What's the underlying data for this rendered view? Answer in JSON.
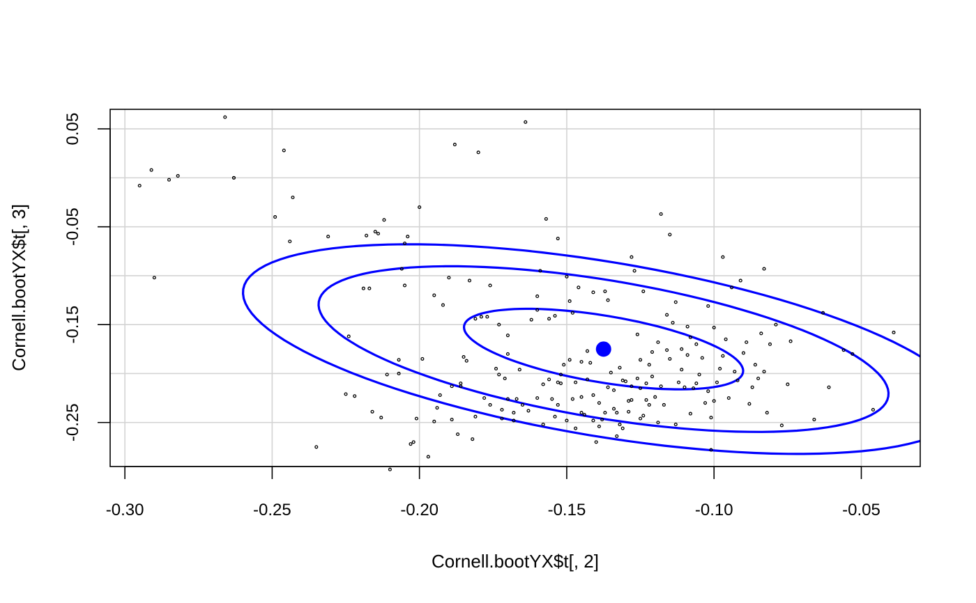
{
  "chart_data": {
    "type": "scatter",
    "xlabel": "Cornell.bootYX$t[, 2]",
    "ylabel": "Cornell.bootYX$t[, 3]",
    "xlim": [
      -0.305,
      -0.03
    ],
    "ylim": [
      -0.295,
      0.07
    ],
    "xticks": [
      -0.3,
      -0.25,
      -0.2,
      -0.15,
      -0.1,
      -0.05
    ],
    "xtick_labels": [
      "-0.30",
      "-0.25",
      "-0.20",
      "-0.15",
      "-0.10",
      "-0.05"
    ],
    "yticks": [
      -0.25,
      -0.15,
      -0.05,
      0.05
    ],
    "ytick_labels": [
      "-0.25",
      "-0.15",
      "-0.05",
      "0.05"
    ],
    "grid": true,
    "grid_color": "#d3d3d3",
    "point_color": "#000000",
    "ellipse_color": "#0000ff",
    "center": {
      "x": -0.1375,
      "y": -0.175
    },
    "ellipses": [
      {
        "label_level": "inner",
        "semi_x": 0.048,
        "semi_y": 0.062
      },
      {
        "label_level": "middle",
        "semi_x": 0.098,
        "semi_y": 0.128
      },
      {
        "label_level": "outer",
        "semi_x": 0.124,
        "semi_y": 0.162
      }
    ],
    "ellipse_tilt": -0.165,
    "points": [
      [
        -0.295,
        -0.008
      ],
      [
        -0.291,
        0.008
      ],
      [
        -0.29,
        -0.102
      ],
      [
        -0.285,
        -0.002
      ],
      [
        -0.282,
        0.002
      ],
      [
        -0.266,
        0.062
      ],
      [
        -0.263,
        0.0
      ],
      [
        -0.263,
        0.0
      ],
      [
        -0.249,
        -0.04
      ],
      [
        -0.246,
        0.028
      ],
      [
        -0.243,
        -0.02
      ],
      [
        -0.244,
        -0.065
      ],
      [
        -0.235,
        -0.275
      ],
      [
        -0.231,
        -0.06
      ],
      [
        -0.224,
        -0.162
      ],
      [
        -0.225,
        -0.221
      ],
      [
        -0.222,
        -0.223
      ],
      [
        -0.219,
        -0.113
      ],
      [
        -0.217,
        -0.113
      ],
      [
        -0.218,
        -0.059
      ],
      [
        -0.216,
        -0.239
      ],
      [
        -0.215,
        -0.055
      ],
      [
        -0.214,
        -0.057
      ],
      [
        -0.213,
        -0.245
      ],
      [
        -0.212,
        -0.043
      ],
      [
        -0.211,
        -0.201
      ],
      [
        -0.21,
        -0.298
      ],
      [
        -0.207,
        -0.186
      ],
      [
        -0.207,
        -0.2
      ],
      [
        -0.206,
        -0.093
      ],
      [
        -0.205,
        -0.067
      ],
      [
        -0.205,
        -0.11
      ],
      [
        -0.204,
        -0.06
      ],
      [
        -0.203,
        -0.272
      ],
      [
        -0.202,
        -0.27
      ],
      [
        -0.2,
        -0.03
      ],
      [
        -0.199,
        -0.185
      ],
      [
        -0.197,
        -0.285
      ],
      [
        -0.195,
        -0.12
      ],
      [
        -0.194,
        -0.235
      ],
      [
        -0.193,
        -0.222
      ],
      [
        -0.192,
        -0.13
      ],
      [
        -0.19,
        -0.102
      ],
      [
        -0.189,
        -0.213
      ],
      [
        -0.188,
        0.034
      ],
      [
        -0.187,
        -0.262
      ],
      [
        -0.186,
        -0.213
      ],
      [
        -0.185,
        -0.183
      ],
      [
        -0.184,
        -0.187
      ],
      [
        -0.183,
        -0.105
      ],
      [
        -0.182,
        -0.267
      ],
      [
        -0.181,
        -0.244
      ],
      [
        -0.18,
        0.026
      ],
      [
        -0.179,
        -0.142
      ],
      [
        -0.178,
        -0.225
      ],
      [
        -0.177,
        -0.142
      ],
      [
        -0.176,
        -0.11
      ],
      [
        -0.174,
        -0.195
      ],
      [
        -0.173,
        -0.201
      ],
      [
        -0.172,
        -0.237
      ],
      [
        -0.172,
        -0.246
      ],
      [
        -0.171,
        -0.205
      ],
      [
        -0.17,
        -0.18
      ],
      [
        -0.17,
        -0.226
      ],
      [
        -0.168,
        -0.24
      ],
      [
        -0.167,
        -0.226
      ],
      [
        -0.166,
        -0.196
      ],
      [
        -0.165,
        -0.232
      ],
      [
        -0.164,
        0.057
      ],
      [
        -0.162,
        -0.145
      ],
      [
        -0.16,
        -0.135
      ],
      [
        -0.159,
        -0.095
      ],
      [
        -0.158,
        -0.211
      ],
      [
        -0.157,
        -0.042
      ],
      [
        -0.156,
        -0.144
      ],
      [
        -0.155,
        -0.226
      ],
      [
        -0.154,
        -0.141
      ],
      [
        -0.153,
        -0.062
      ],
      [
        -0.152,
        -0.201
      ],
      [
        -0.152,
        -0.21
      ],
      [
        -0.151,
        -0.191
      ],
      [
        -0.15,
        -0.101
      ],
      [
        -0.149,
        -0.126
      ],
      [
        -0.148,
        -0.138
      ],
      [
        -0.147,
        -0.256
      ],
      [
        -0.146,
        -0.112
      ],
      [
        -0.145,
        -0.24
      ],
      [
        -0.144,
        -0.242
      ],
      [
        -0.143,
        -0.206
      ],
      [
        -0.142,
        -0.189
      ],
      [
        -0.141,
        -0.248
      ],
      [
        -0.14,
        -0.27
      ],
      [
        -0.139,
        -0.23
      ],
      [
        -0.138,
        -0.247
      ],
      [
        -0.137,
        -0.24
      ],
      [
        -0.136,
        -0.214
      ],
      [
        -0.135,
        -0.199
      ],
      [
        -0.134,
        -0.236
      ],
      [
        -0.133,
        -0.24
      ],
      [
        -0.132,
        -0.252
      ],
      [
        -0.131,
        -0.256
      ],
      [
        -0.13,
        -0.208
      ],
      [
        -0.129,
        -0.239
      ],
      [
        -0.128,
        -0.227
      ],
      [
        -0.127,
        -0.095
      ],
      [
        -0.126,
        -0.16
      ],
      [
        -0.125,
        -0.215
      ],
      [
        -0.124,
        -0.243
      ],
      [
        -0.123,
        -0.227
      ],
      [
        -0.122,
        -0.191
      ],
      [
        -0.121,
        -0.203
      ],
      [
        -0.12,
        -0.224
      ],
      [
        -0.119,
        -0.25
      ],
      [
        -0.118,
        -0.213
      ],
      [
        -0.117,
        -0.232
      ],
      [
        -0.116,
        -0.176
      ],
      [
        -0.115,
        -0.185
      ],
      [
        -0.114,
        -0.148
      ],
      [
        -0.113,
        -0.252
      ],
      [
        -0.112,
        -0.209
      ],
      [
        -0.111,
        -0.196
      ],
      [
        -0.11,
        -0.214
      ],
      [
        -0.109,
        -0.181
      ],
      [
        -0.108,
        -0.241
      ],
      [
        -0.107,
        -0.215
      ],
      [
        -0.106,
        -0.21
      ],
      [
        -0.105,
        -0.201
      ],
      [
        -0.104,
        -0.184
      ],
      [
        -0.103,
        -0.23
      ],
      [
        -0.102,
        -0.218
      ],
      [
        -0.101,
        -0.245
      ],
      [
        -0.1,
        -0.228
      ],
      [
        -0.099,
        -0.209
      ],
      [
        -0.098,
        -0.195
      ],
      [
        -0.097,
        -0.182
      ],
      [
        -0.096,
        -0.165
      ],
      [
        -0.095,
        -0.225
      ],
      [
        -0.094,
        -0.112
      ],
      [
        -0.093,
        -0.198
      ],
      [
        -0.092,
        -0.207
      ],
      [
        -0.091,
        -0.105
      ],
      [
        -0.09,
        -0.179
      ],
      [
        -0.089,
        -0.168
      ],
      [
        -0.088,
        -0.231
      ],
      [
        -0.087,
        -0.214
      ],
      [
        -0.086,
        -0.191
      ],
      [
        -0.085,
        -0.205
      ],
      [
        -0.084,
        -0.159
      ],
      [
        -0.083,
        -0.198
      ],
      [
        -0.082,
        -0.24
      ],
      [
        -0.081,
        -0.17
      ],
      [
        -0.079,
        -0.15
      ],
      [
        -0.077,
        -0.253
      ],
      [
        -0.075,
        -0.211
      ],
      [
        -0.074,
        -0.167
      ],
      [
        -0.066,
        -0.247
      ],
      [
        -0.063,
        -0.138
      ],
      [
        -0.061,
        -0.214
      ],
      [
        -0.056,
        -0.176
      ],
      [
        -0.053,
        -0.18
      ],
      [
        -0.046,
        -0.237
      ],
      [
        -0.039,
        -0.158
      ],
      [
        -0.123,
        -0.21
      ],
      [
        -0.116,
        -0.14
      ],
      [
        -0.113,
        -0.127
      ],
      [
        -0.102,
        -0.131
      ],
      [
        -0.118,
        -0.037
      ],
      [
        -0.115,
        -0.058
      ],
      [
        -0.101,
        -0.278
      ],
      [
        -0.1,
        -0.153
      ],
      [
        -0.097,
        -0.081
      ],
      [
        -0.083,
        -0.093
      ],
      [
        -0.16,
        -0.121
      ],
      [
        -0.141,
        -0.117
      ],
      [
        -0.137,
        -0.116
      ],
      [
        -0.128,
        -0.081
      ],
      [
        -0.124,
        -0.116
      ],
      [
        -0.136,
        -0.125
      ],
      [
        -0.145,
        -0.188
      ],
      [
        -0.147,
        -0.209
      ],
      [
        -0.153,
        -0.209
      ],
      [
        -0.156,
        -0.206
      ],
      [
        -0.143,
        -0.177
      ],
      [
        -0.149,
        -0.186
      ],
      [
        -0.132,
        -0.194
      ],
      [
        -0.131,
        -0.207
      ],
      [
        -0.128,
        -0.213
      ],
      [
        -0.126,
        -0.205
      ],
      [
        -0.129,
        -0.228
      ],
      [
        -0.134,
        -0.217
      ],
      [
        -0.141,
        -0.222
      ],
      [
        -0.148,
        -0.226
      ],
      [
        -0.154,
        -0.244
      ],
      [
        -0.158,
        -0.252
      ],
      [
        -0.163,
        -0.238
      ],
      [
        -0.168,
        -0.248
      ],
      [
        -0.176,
        -0.232
      ],
      [
        -0.186,
        -0.21
      ],
      [
        -0.195,
        -0.249
      ],
      [
        -0.201,
        -0.246
      ],
      [
        -0.109,
        -0.152
      ],
      [
        -0.108,
        -0.163
      ],
      [
        -0.106,
        -0.17
      ],
      [
        -0.111,
        -0.175
      ],
      [
        -0.119,
        -0.168
      ],
      [
        -0.121,
        -0.178
      ],
      [
        -0.125,
        -0.186
      ],
      [
        -0.122,
        -0.232
      ],
      [
        -0.125,
        -0.246
      ],
      [
        -0.133,
        -0.264
      ],
      [
        -0.139,
        -0.254
      ],
      [
        -0.145,
        -0.224
      ],
      [
        -0.15,
        -0.248
      ],
      [
        -0.153,
        -0.232
      ],
      [
        -0.16,
        -0.225
      ],
      [
        -0.173,
        -0.15
      ],
      [
        -0.17,
        -0.161
      ],
      [
        -0.181,
        -0.144
      ],
      [
        -0.189,
        -0.247
      ]
    ]
  }
}
